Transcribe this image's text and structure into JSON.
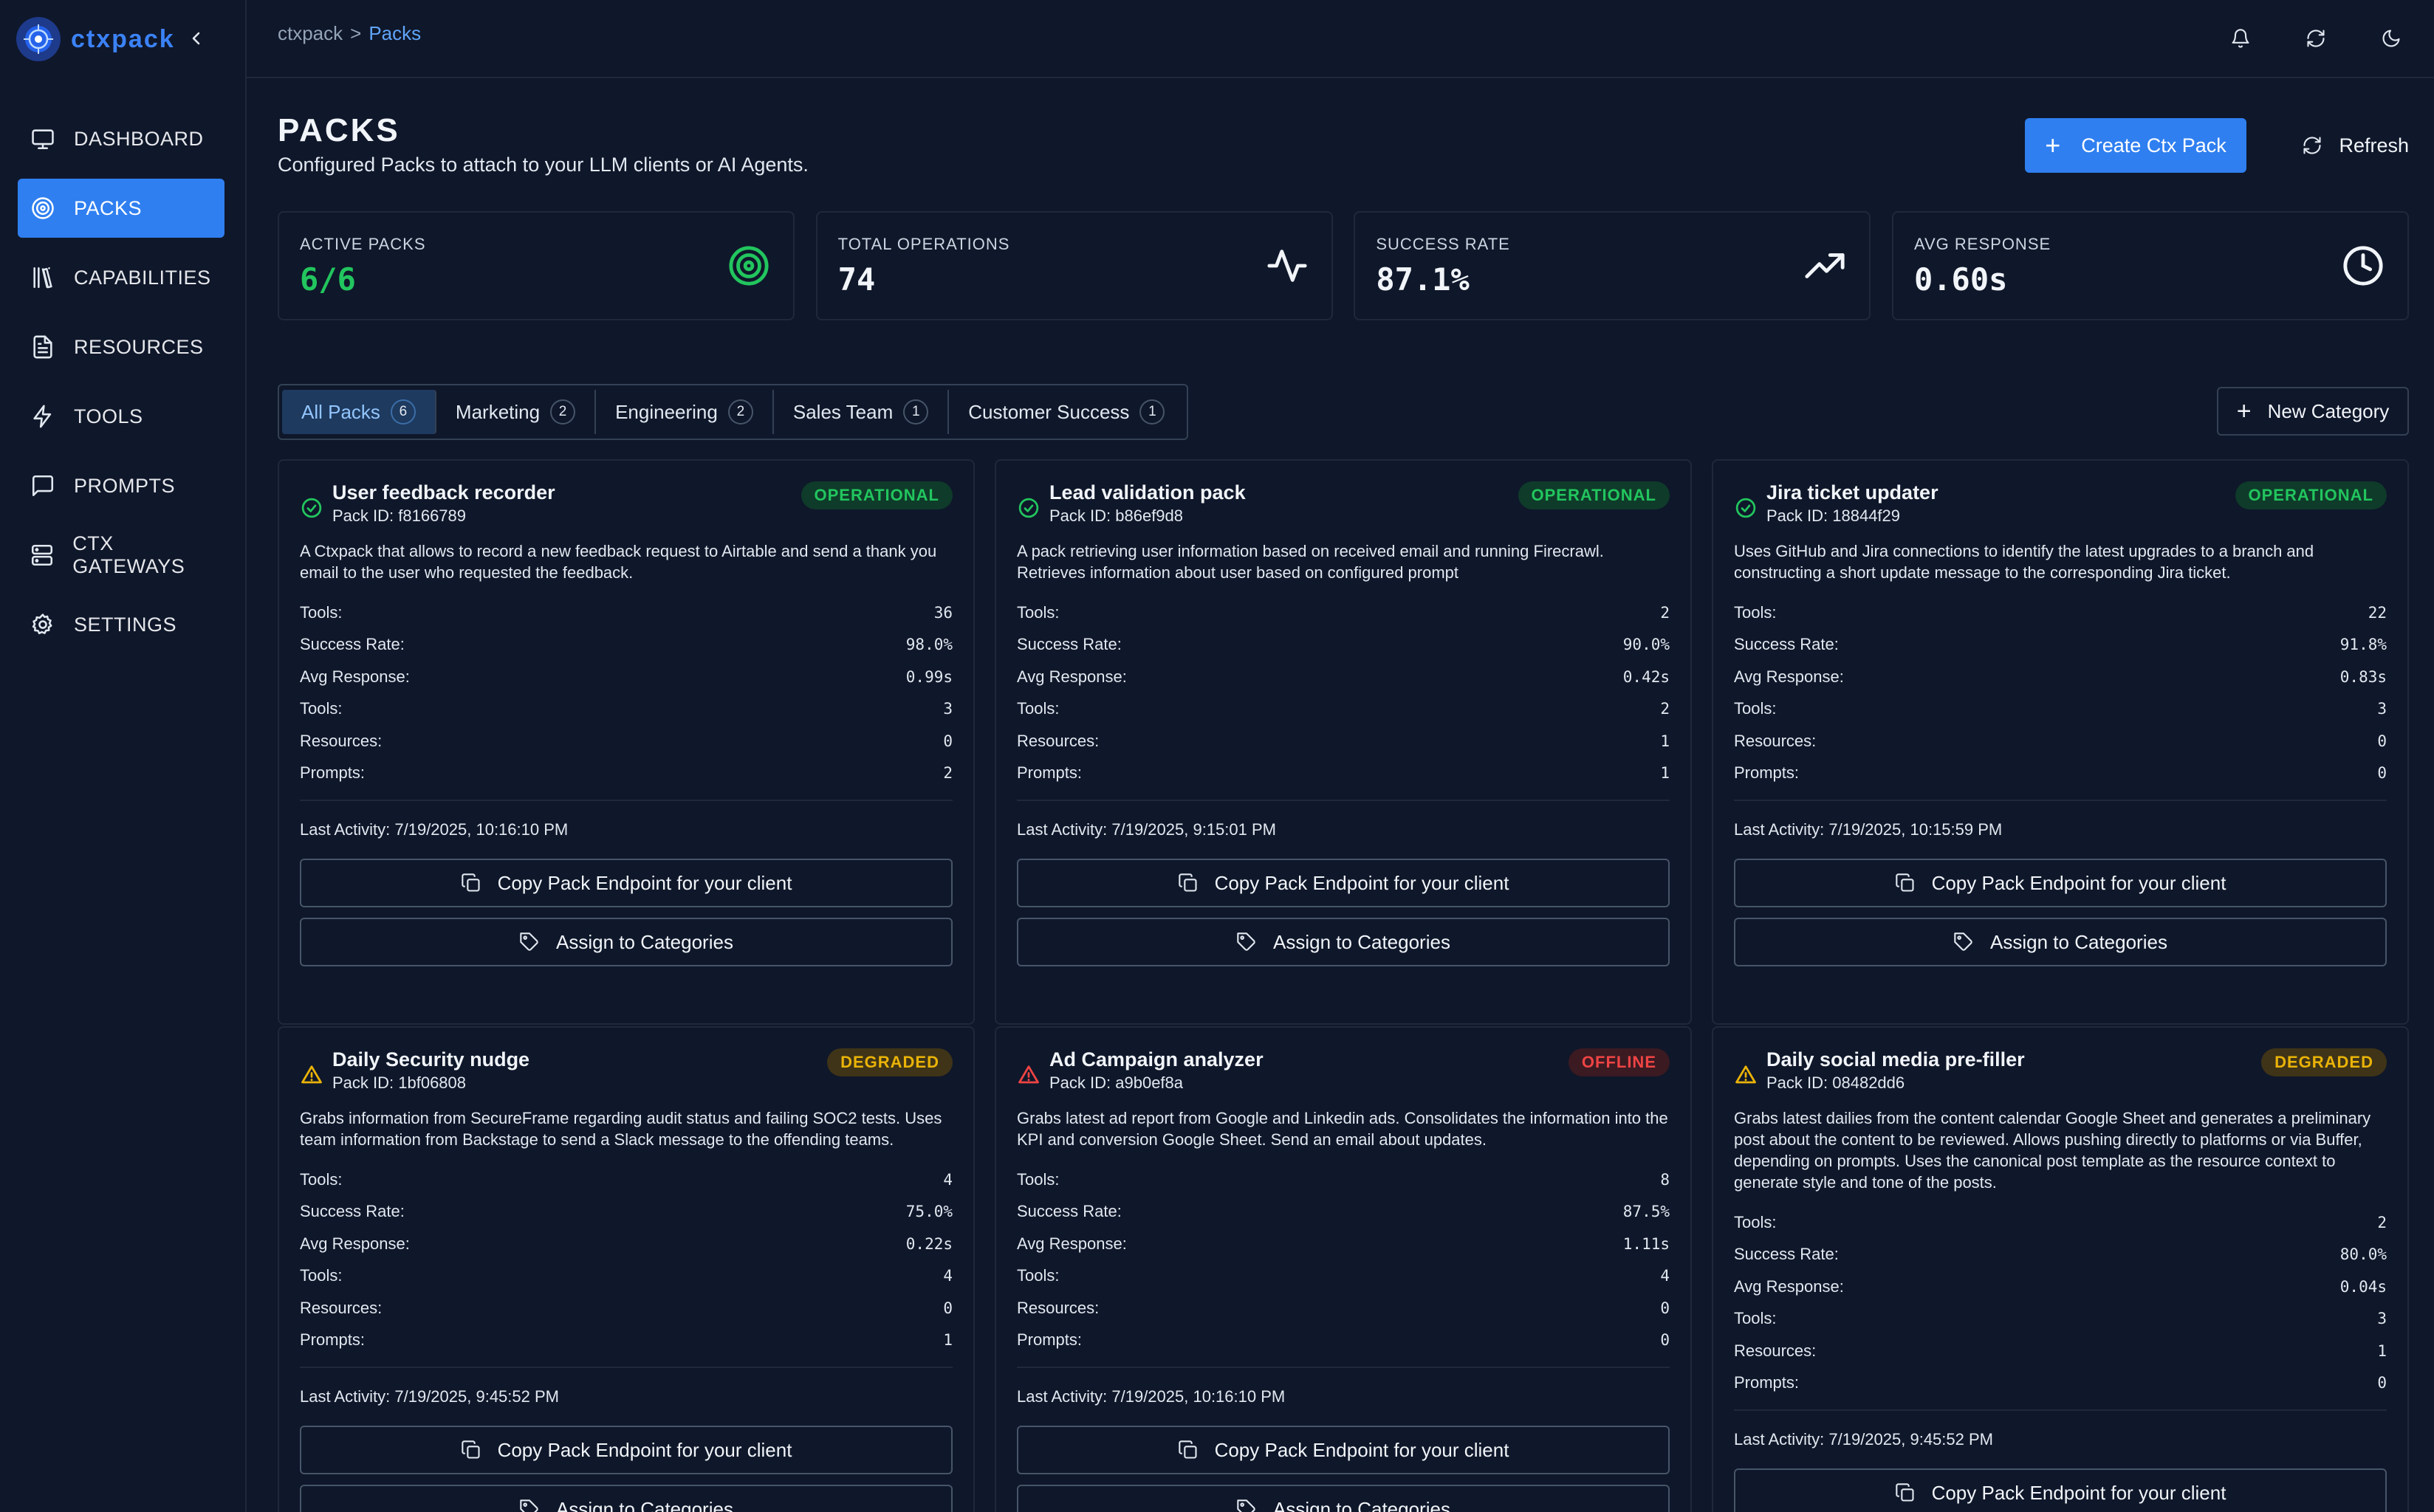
{
  "brand": {
    "name": "ctxpack"
  },
  "nav": [
    {
      "label": "DASHBOARD",
      "icon": "monitor-icon",
      "active": false
    },
    {
      "label": "PACKS",
      "icon": "target-icon",
      "active": true
    },
    {
      "label": "CAPABILITIES",
      "icon": "library-icon",
      "active": false
    },
    {
      "label": "RESOURCES",
      "icon": "document-icon",
      "active": false
    },
    {
      "label": "TOOLS",
      "icon": "lightning-icon",
      "active": false
    },
    {
      "label": "PROMPTS",
      "icon": "message-icon",
      "active": false
    },
    {
      "label": "CTX GATEWAYS",
      "icon": "server-icon",
      "active": false
    },
    {
      "label": "SETTINGS",
      "icon": "gear-icon",
      "active": false
    }
  ],
  "breadcrumb": {
    "root": "ctxpack",
    "separator": ">",
    "current": "Packs"
  },
  "page": {
    "title": "PACKS",
    "subtitle": "Configured Packs to attach to your LLM clients or AI Agents.",
    "create_label": "Create Ctx Pack",
    "refresh_label": "Refresh"
  },
  "stats": [
    {
      "label": "ACTIVE PACKS",
      "value": "6/6",
      "icon": "target-icon",
      "accent": "#22c55e"
    },
    {
      "label": "TOTAL OPERATIONS",
      "value": "74",
      "icon": "activity-icon"
    },
    {
      "label": "SUCCESS RATE",
      "value": "87.1%",
      "icon": "trending-up-icon"
    },
    {
      "label": "AVG RESPONSE",
      "value": "0.60s",
      "icon": "clock-icon"
    }
  ],
  "tabs": [
    {
      "label": "All Packs",
      "count": "6",
      "active": true
    },
    {
      "label": "Marketing",
      "count": "2",
      "active": false
    },
    {
      "label": "Engineering",
      "count": "2",
      "active": false
    },
    {
      "label": "Sales Team",
      "count": "1",
      "active": false
    },
    {
      "label": "Customer Success",
      "count": "1",
      "active": false
    }
  ],
  "new_category_label": "New Category",
  "labels": {
    "tools": "Tools:",
    "success_rate": "Success Rate:",
    "avg_response": "Avg Response:",
    "resources": "Resources:",
    "prompts": "Prompts:",
    "last_activity": "Last Activity:",
    "copy_endpoint": "Copy Pack Endpoint for your client",
    "assign_categories": "Assign to Categories"
  },
  "packs": [
    {
      "title": "User feedback recorder",
      "pack_id": "Pack ID: f8166789",
      "status": "OPERATIONAL",
      "description": "A Ctxpack that allows to record a new feedback request to Airtable and send a thank you email to the user who requested the feedback.",
      "tools_total": "36",
      "success_rate": "98.0%",
      "avg_response": "0.99s",
      "tools": "3",
      "resources": "0",
      "prompts": "2",
      "last_activity": "Last Activity: 7/19/2025, 10:16:10 PM"
    },
    {
      "title": "Lead validation pack",
      "pack_id": "Pack ID: b86ef9d8",
      "status": "OPERATIONAL",
      "description": "A pack retrieving user information based on received email and running Firecrawl. Retrieves information about user based on configured prompt",
      "tools_total": "2",
      "success_rate": "90.0%",
      "avg_response": "0.42s",
      "tools": "2",
      "resources": "1",
      "prompts": "1",
      "last_activity": "Last Activity: 7/19/2025, 9:15:01 PM"
    },
    {
      "title": "Jira ticket updater",
      "pack_id": "Pack ID: 18844f29",
      "status": "OPERATIONAL",
      "description": "Uses GitHub and Jira connections to identify the latest upgrades to a branch and constructing a short update message to the corresponding Jira ticket.",
      "tools_total": "22",
      "success_rate": "91.8%",
      "avg_response": "0.83s",
      "tools": "3",
      "resources": "0",
      "prompts": "0",
      "last_activity": "Last Activity: 7/19/2025, 10:15:59 PM"
    },
    {
      "title": "Daily Security nudge",
      "pack_id": "Pack ID: 1bf06808",
      "status": "DEGRADED",
      "description": "Grabs information from SecureFrame regarding audit status and failing SOC2 tests. Uses team information from Backstage to send a Slack message to the offending teams.",
      "tools_total": "4",
      "success_rate": "75.0%",
      "avg_response": "0.22s",
      "tools": "4",
      "resources": "0",
      "prompts": "1",
      "last_activity": "Last Activity: 7/19/2025, 9:45:52 PM"
    },
    {
      "title": "Ad Campaign analyzer",
      "pack_id": "Pack ID: a9b0ef8a",
      "status": "OFFLINE",
      "description": "Grabs latest ad report from Google and Linkedin ads. Consolidates the information into the KPI and conversion Google Sheet. Send an email about updates.",
      "tools_total": "8",
      "success_rate": "87.5%",
      "avg_response": "1.11s",
      "tools": "4",
      "resources": "0",
      "prompts": "0",
      "last_activity": "Last Activity: 7/19/2025, 10:16:10 PM"
    },
    {
      "title": "Daily social media pre-filler",
      "pack_id": "Pack ID: 08482dd6",
      "status": "DEGRADED",
      "description": "Grabs latest dailies from the content calendar Google Sheet and generates a preliminary post about the content to be reviewed. Allows pushing directly to platforms or via Buffer, depending on prompts. Uses the canonical post template as the resource context to generate style and tone of the posts.",
      "tools_total": "2",
      "success_rate": "80.0%",
      "avg_response": "0.04s",
      "tools": "3",
      "resources": "1",
      "prompts": "0",
      "last_activity": "Last Activity: 7/19/2025, 9:45:52 PM"
    }
  ],
  "colors": {
    "accent": "#2f7ff0",
    "operational": "#22c55e",
    "degraded": "#eab308",
    "offline": "#ef4444"
  }
}
